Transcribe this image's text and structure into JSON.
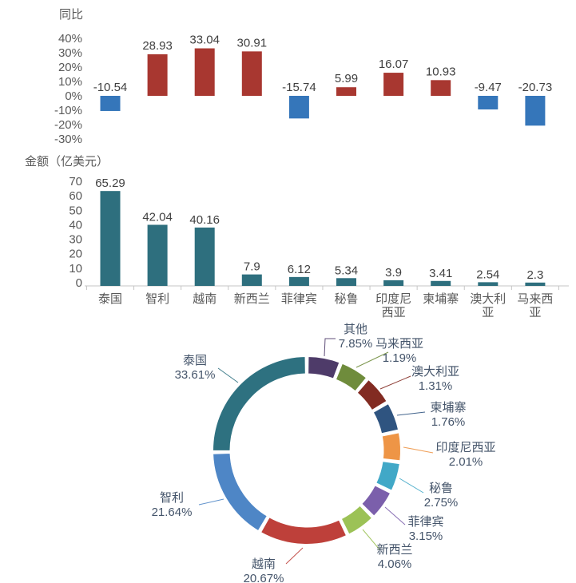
{
  "page": {
    "background": "#FFFFFF"
  },
  "text_colors": {
    "axis": "#595959",
    "value_label": "#404040",
    "donut_label": "#44546A"
  },
  "chart_data": [
    {
      "id": "yoy",
      "type": "bar",
      "title": "同比",
      "categories": [
        "泰国",
        "智利",
        "越南",
        "新西兰",
        "菲律宾",
        "秘鲁",
        "印度尼西亚",
        "柬埔寨",
        "澳大利亚",
        "马来西亚"
      ],
      "values": [
        -10.54,
        28.93,
        33.04,
        30.91,
        -15.74,
        5.99,
        16.07,
        10.93,
        -9.47,
        -20.73
      ],
      "value_labels": [
        "-10.54",
        "28.93",
        "33.04",
        "30.91",
        "-15.74",
        "5.99",
        "16.07",
        "10.93",
        "-9.47",
        "-20.73"
      ],
      "y_ticks": [
        "40%",
        "30%",
        "20%",
        "10%",
        "0%",
        "-10%",
        "-20%",
        "-30%"
      ],
      "y_tick_values": [
        40,
        30,
        20,
        10,
        0,
        -10,
        -20,
        -30
      ],
      "ylim": [
        -30,
        40
      ],
      "grid": false,
      "legend": false,
      "colors": {
        "positive": "#A83730",
        "negative": "#3576BA"
      }
    },
    {
      "id": "amount",
      "type": "bar",
      "title": "金额（亿美元）",
      "categories": [
        "泰国",
        "智利",
        "越南",
        "新西兰",
        "菲律宾",
        "秘鲁",
        "印度尼西亚",
        "柬埔寨",
        "澳大利亚",
        "马来西亚"
      ],
      "values": [
        65.29,
        42.04,
        40.16,
        7.9,
        6.12,
        5.34,
        3.9,
        3.41,
        2.54,
        2.3
      ],
      "value_labels": [
        "65.29",
        "42.04",
        "40.16",
        "7.9",
        "6.12",
        "5.34",
        "3.9",
        "3.41",
        "2.54",
        "2.3"
      ],
      "y_ticks": [
        "70",
        "60",
        "50",
        "40",
        "30",
        "20",
        "10",
        "0"
      ],
      "y_tick_values": [
        70,
        60,
        50,
        40,
        30,
        20,
        10,
        0
      ],
      "ylim": [
        0,
        70
      ],
      "grid": false,
      "legend": false,
      "bar_color": "#2E6F7E",
      "axis_color": "#C6C6C6"
    },
    {
      "id": "share",
      "type": "donut",
      "unit": "%",
      "slices": [
        {
          "label": "泰国",
          "value": 33.61,
          "pct_label": "33.61%",
          "color": "#2E7180"
        },
        {
          "label": "智利",
          "value": 21.64,
          "pct_label": "21.64%",
          "color": "#4E86C6"
        },
        {
          "label": "越南",
          "value": 20.67,
          "pct_label": "20.67%",
          "color": "#BE403A"
        },
        {
          "label": "新西兰",
          "value": 4.06,
          "pct_label": "4.06%",
          "color": "#9CC256"
        },
        {
          "label": "菲律宾",
          "value": 3.15,
          "pct_label": "3.15%",
          "color": "#7B5FAB"
        },
        {
          "label": "秘鲁",
          "value": 2.75,
          "pct_label": "2.75%",
          "color": "#41A8C7"
        },
        {
          "label": "印度尼西亚",
          "value": 2.01,
          "pct_label": "2.01%",
          "color": "#EE9546"
        },
        {
          "label": "柬埔寨",
          "value": 1.76,
          "pct_label": "1.76%",
          "color": "#2F5480"
        },
        {
          "label": "澳大利亚",
          "value": 1.31,
          "pct_label": "1.31%",
          "color": "#822B22"
        },
        {
          "label": "马来西亚",
          "value": 1.19,
          "pct_label": "1.19%",
          "color": "#6F8C3C"
        },
        {
          "label": "其他",
          "value": 7.85,
          "pct_label": "7.85%",
          "color": "#4E3B69"
        }
      ]
    }
  ]
}
